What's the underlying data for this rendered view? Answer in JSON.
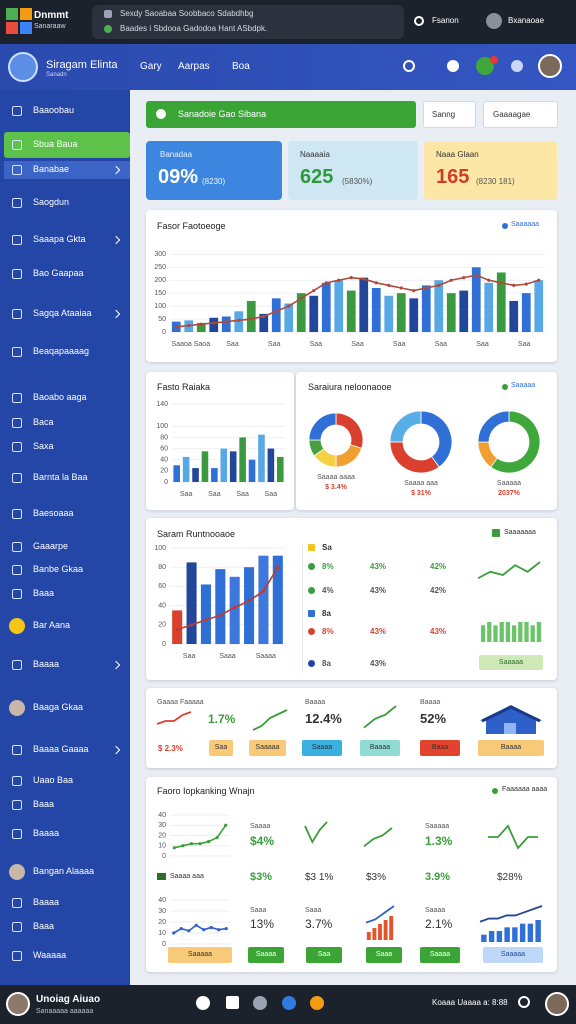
{
  "topbar": {
    "brand": "Dnmmt",
    "brand_sub": "Sanaraaw",
    "notice": [
      "Sexdy Saoabaa Soobbaco Sdabdhbg",
      "Baades i Sbdooa Gadodoa Hant ASbdpk."
    ],
    "action": "Fsanon",
    "user": "Bxanaoae"
  },
  "header": {
    "app": "Siragam Elinta",
    "app_sub": "Sanadn",
    "nav": [
      "Gary",
      "Aarpas",
      "Boa"
    ]
  },
  "sidebar": [
    "Baaoobau",
    "Sbua Baua",
    "Banabae",
    "Saogdun",
    "Saaapa Gkta",
    "Bao Gaapaa",
    "Sagqa Ataaiaa",
    "Beaqapaaaag",
    "Baoabo aaga",
    "Baca",
    "Saxa",
    "Barnta la Baa",
    "Baesoaaa",
    "Gaaarpe",
    "Banbe Gkaa",
    "Baaa",
    "Bar Aana",
    "Baaaa",
    "Baaga Gkaa",
    "Baaaa Gaaaa",
    "Uaao Baa",
    "Baaa",
    "Baaaa",
    "Bangan Alaaaa",
    "Baaaa",
    "Baaa",
    "Waaaaa"
  ],
  "banner": "Sanadoie Gao Sibana",
  "filters": [
    "Sanng",
    "Gaaaagae"
  ],
  "kpis": [
    {
      "label": "Banadaa",
      "value": "09%",
      "sub": "(8230)"
    },
    {
      "label": "Naaaaia",
      "value": "625",
      "sub": "(5830%)"
    },
    {
      "label": "Naaa Glaan",
      "value": "165",
      "sub": "(8230  181)"
    }
  ],
  "revenue": {
    "type": "bar",
    "title": "Fasor Faotoeoge",
    "legend": "Saaaaaa",
    "ylim": [
      0,
      340
    ],
    "yticks": [
      0,
      50,
      100,
      150,
      200,
      250,
      300
    ],
    "colors": [
      "#2f6fd6",
      "#58a8e6",
      "#3b9a3f",
      "#22479a"
    ],
    "values": [
      40,
      45,
      35,
      55,
      60,
      80,
      120,
      70,
      130,
      110,
      150,
      140,
      190,
      200,
      160,
      210,
      170,
      140,
      150,
      130,
      180,
      200,
      150,
      160,
      250,
      190,
      230,
      120,
      150,
      200
    ],
    "line": {
      "color": "#b04a3a",
      "values": [
        20,
        25,
        30,
        35,
        40,
        45,
        50,
        60,
        80,
        100,
        130,
        160,
        190,
        200,
        210,
        205,
        190,
        180,
        170,
        160,
        170,
        180,
        200,
        210,
        220,
        200,
        190,
        180,
        185,
        200
      ]
    },
    "xlabels": [
      "Saaoa Saoa",
      "Saa",
      "Saa",
      "Saa",
      "Saa",
      "Saa",
      "Saa",
      "Saa",
      "Saa"
    ]
  },
  "fasto": {
    "type": "bar",
    "title": "Fasto Raiaka",
    "ylim": [
      0,
      140
    ],
    "yticks": [
      0,
      20,
      40,
      60,
      80,
      100,
      140
    ],
    "colors": [
      "#2f6fd6",
      "#58a8e6",
      "#22479a",
      "#3b9a3f"
    ],
    "values": [
      30,
      45,
      25,
      55,
      25,
      60,
      55,
      80,
      40,
      85,
      60,
      45
    ],
    "xlabels": [
      "Saa",
      "Saa",
      "Saa",
      "Saa"
    ]
  },
  "segments": {
    "type": "pie",
    "title": "Saraiura neloonaooe",
    "legend": "Saaaaa",
    "donuts": [
      {
        "values": [
          30,
          20,
          15,
          10,
          25
        ],
        "colors": [
          "#d9412e",
          "#f0a030",
          "#f5d040",
          "#4aa040",
          "#2f6fd6"
        ],
        "label": "Saaaa aaaa",
        "sub": "$ 3.4%"
      },
      {
        "values": [
          40,
          35,
          25
        ],
        "colors": [
          "#2f6fd6",
          "#d9412e",
          "#5aaee8"
        ],
        "label": "Saaaa aaa",
        "sub": "$ 31%"
      },
      {
        "values": [
          60,
          15,
          25
        ],
        "colors": [
          "#3ea83a",
          "#f0a030",
          "#2f6fd6"
        ],
        "label": "Saaaaa",
        "sub": "2037%"
      }
    ]
  },
  "saram": {
    "type": "bar",
    "title": "Saram Runtnooaoe",
    "legend": "Saaaaaaa",
    "ylim": [
      0,
      100
    ],
    "yticks": [
      0,
      20,
      40,
      60,
      80,
      100
    ],
    "colors": [
      "#d9412e",
      "#22479a",
      "#2f6fd6",
      "#2f6fd6",
      "#3e78dc",
      "#2f6fd6",
      "#3e78dc",
      "#2f6fd6"
    ],
    "values": [
      35,
      85,
      62,
      78,
      70,
      80,
      92,
      92
    ],
    "line": {
      "color": "#c0392b",
      "values": [
        15,
        20,
        25,
        30,
        38,
        45,
        55,
        80
      ]
    },
    "xlabels": [
      "Saa",
      "Saaa",
      "Saaaa"
    ],
    "rows": [
      [
        "Sa"
      ],
      [
        "8%",
        "43%",
        "42%"
      ],
      [
        "4%",
        "43%",
        "42%"
      ],
      [
        "8a"
      ],
      [
        "8%",
        "43%",
        "43%"
      ],
      [
        "8a",
        "43%"
      ]
    ],
    "badge": "Saaaaa"
  },
  "sparklines": [
    {
      "kind": "line",
      "color": "#3a9e3c",
      "values": [
        3,
        5,
        4,
        7,
        5,
        8
      ]
    },
    {
      "kind": "bars",
      "color": "#6cc46a",
      "values": [
        5,
        6,
        5,
        6,
        6,
        5,
        6,
        6,
        5,
        6
      ]
    },
    {
      "kind": "line",
      "color": "#d9412e",
      "values": [
        2,
        3,
        3,
        5,
        6
      ]
    },
    {
      "kind": "line",
      "color": "#3a9e3c",
      "values": [
        1,
        2,
        4,
        5,
        6
      ]
    },
    {
      "kind": "line",
      "color": "#3a9e3c",
      "values": [
        1,
        3,
        4,
        6
      ]
    },
    {
      "kind": "line",
      "color": "#3a9e3c",
      "values": [
        5,
        1,
        4,
        6
      ]
    },
    {
      "kind": "line",
      "color": "#3a9e3c",
      "values": [
        1,
        3,
        4,
        6
      ]
    },
    {
      "kind": "line",
      "color": "#3a9e3c",
      "values": [
        3,
        3,
        6,
        0,
        3,
        3
      ]
    },
    {
      "kind": "bars",
      "color": "#e0552e",
      "values": [
        2,
        3,
        4,
        5,
        6
      ]
    },
    {
      "kind": "line",
      "color": "#2f5fc8",
      "values": [
        1,
        2,
        4,
        6
      ]
    },
    {
      "kind": "bars",
      "color": "#2f6fd6",
      "values": [
        2,
        3,
        3,
        4,
        4,
        5,
        5,
        6
      ]
    },
    {
      "kind": "line",
      "color": "#22479a",
      "values": [
        2,
        3,
        3,
        4,
        4,
        5,
        6,
        7
      ]
    }
  ],
  "strip": {
    "texts": [
      "Gaaaa Faaaaa",
      "1.7%",
      "$ 2.3%",
      "Baaaa",
      "12.4%",
      "Baaaa",
      "52%"
    ],
    "badges": [
      "Saa",
      "Saaaaa",
      "Saaaa",
      "Baaaa",
      "Baaa",
      "Baaaa"
    ]
  },
  "panel": {
    "title": "Faoro Iopkanking Wnajn",
    "legend": "Faaaaaa aaaa",
    "mini_label": "Saaaa aaa",
    "texts": [
      "Saaaa",
      "$4%",
      "Saaaaa",
      "1.3%",
      "$3%",
      "$3 1%",
      "$3%",
      "3.9%",
      "$28%",
      "Saaa",
      "13%",
      "Saaa",
      "3.7%",
      "Saaaa",
      "2.1%"
    ],
    "badges": [
      "Saaaaa",
      "Saaaa",
      "Saa",
      "Saaa",
      "Saaaa",
      "Saaaaa"
    ],
    "mini1": {
      "type": "line",
      "ylim": [
        0,
        40
      ],
      "yticks": [
        0,
        10,
        20,
        30,
        40
      ],
      "line": {
        "color": "#3a9e3c",
        "values": [
          8,
          10,
          12,
          12,
          14,
          18,
          30
        ]
      }
    },
    "mini2": {
      "type": "line",
      "ylim": [
        0,
        40
      ],
      "yticks": [
        0,
        10,
        20,
        30,
        40
      ],
      "line": {
        "color": "#2f5fc8",
        "values": [
          10,
          14,
          12,
          17,
          13,
          15,
          13,
          14
        ]
      }
    }
  },
  "bottombar": {
    "user": "Unoiag Aiuao",
    "user_sub": "Sanaaaaa aaaaaa",
    "status": "Koaaa Uaaaa a: 8:88"
  }
}
